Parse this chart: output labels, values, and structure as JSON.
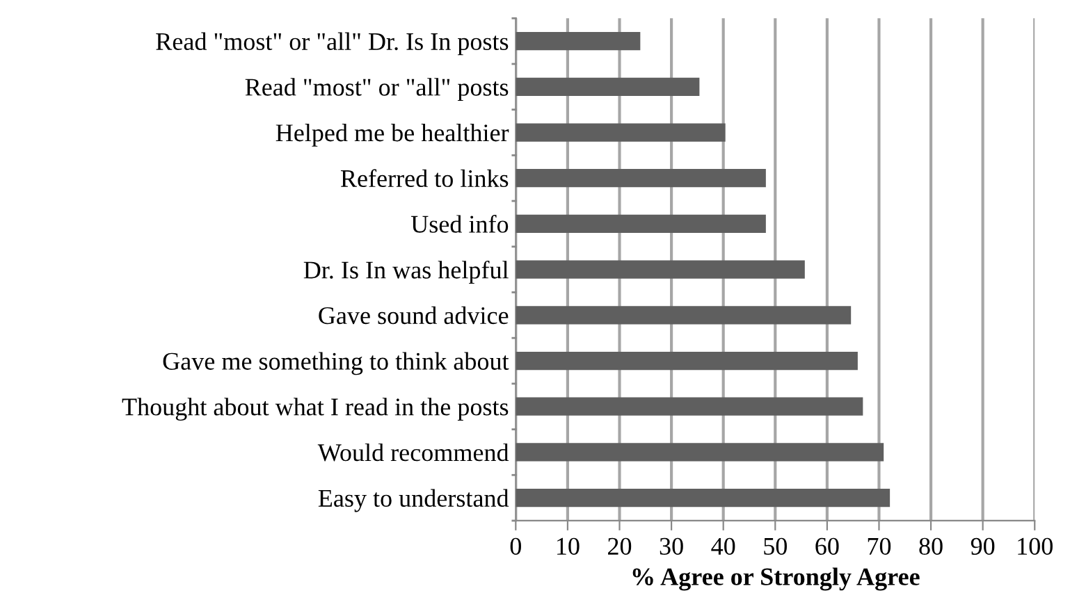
{
  "chart_data": {
    "type": "bar",
    "orientation": "horizontal",
    "xlabel": "% Agree or Strongly Agree",
    "categories": [
      "Read \"most\" or \"all\" Dr. Is In posts",
      "Read \"most\" or \"all\" posts",
      "Helped me be healthier",
      "Referred to links",
      "Used info",
      "Dr. Is In was helpful",
      "Gave sound advice",
      "Gave me something to think about",
      "Thought about what I read in the posts",
      "Would recommend",
      "Easy to understand"
    ],
    "values": [
      24,
      35.4,
      40.4,
      48.2,
      48.2,
      55.7,
      64.6,
      65.9,
      66.9,
      70.9,
      72.1
    ],
    "color": "#5f5f5f",
    "xlim": [
      0,
      100
    ],
    "xticks": [
      0,
      10,
      20,
      30,
      40,
      50,
      60,
      70,
      80,
      90,
      100
    ],
    "grid": "x"
  }
}
